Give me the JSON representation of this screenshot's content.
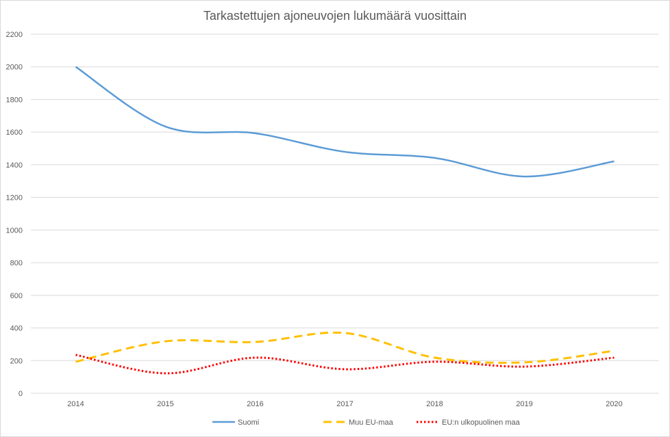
{
  "chart_data": {
    "type": "line",
    "title": "Tarkastettujen ajoneuvojen lukumäärä vuosittain",
    "xlabel": "",
    "ylabel": "",
    "categories": [
      "2014",
      "2015",
      "2016",
      "2017",
      "2018",
      "2019",
      "2020"
    ],
    "ylim": [
      0,
      2200
    ],
    "yticks": [
      0,
      200,
      400,
      600,
      800,
      1000,
      1200,
      1400,
      1600,
      1800,
      2000,
      2200
    ],
    "grid": true,
    "legend_position": "bottom",
    "smooth": true,
    "series": [
      {
        "name": "Suomi",
        "color": "#5b9bd5",
        "dash": "solid",
        "values": [
          2000,
          1634,
          1593,
          1479,
          1442,
          1328,
          1421
        ]
      },
      {
        "name": "Muu EU-maa",
        "color": "#ffc000",
        "dash": "dashed",
        "values": [
          193,
          318,
          314,
          369,
          218,
          189,
          260
        ]
      },
      {
        "name": "EU:n ulkopuolinen maa",
        "color": "#ff0000",
        "dash": "dotted",
        "values": [
          235,
          122,
          218,
          147,
          193,
          163,
          218
        ]
      }
    ]
  }
}
